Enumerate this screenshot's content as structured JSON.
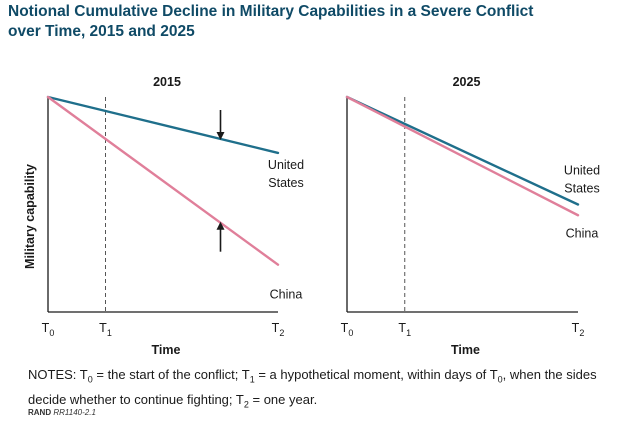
{
  "figure": {
    "title_line1": "Notional Cumulative Decline in Military Capabilities in a Severe Conflict",
    "title_line2": "over Time, 2015 and 2025",
    "notes_prefix": "NOTES: ",
    "notes_t0": "T",
    "notes_t0_sub": "0",
    "notes_t0_def": " = the start of the conflict; ",
    "notes_t1": "T",
    "notes_t1_sub": "1",
    "notes_t1_def": " = a hypothetical moment, within days of ",
    "notes_t0b": "T",
    "notes_t0b_sub": "0",
    "notes_t0b_def": ", when the sides decide whether to continue fighting; ",
    "notes_t2": "T",
    "notes_t2_sub": "2",
    "notes_t2_def": " = one year.",
    "source_org": "RAND ",
    "source_id": "RR1140-2.1"
  },
  "colors": {
    "united_states": "#1f6f8b",
    "china": "#e07f9a",
    "axis": "#1a1a1a",
    "title": "#0f4a66"
  },
  "chart_data": [
    {
      "type": "line",
      "title": "2015",
      "xlabel": "Time",
      "ylabel": "Military capability",
      "x_ticks": [
        {
          "main": "T",
          "sub": "0",
          "at": 0
        },
        {
          "main": "T",
          "sub": "1",
          "at": 0.25
        },
        {
          "main": "T",
          "sub": "2",
          "at": 1
        }
      ],
      "reference_line_x": 0.25,
      "xlim": [
        0,
        1
      ],
      "ylim": [
        0,
        1
      ],
      "series": [
        {
          "name": "United States",
          "name_lines": [
            "United",
            "States"
          ],
          "color": "#1f6f8b",
          "x": [
            0,
            1
          ],
          "y": [
            1.0,
            0.74
          ]
        },
        {
          "name": "China",
          "name_lines": [
            "China"
          ],
          "color": "#e07f9a",
          "x": [
            0,
            1
          ],
          "y": [
            1.0,
            0.22
          ]
        }
      ],
      "annotations": [
        {
          "type": "arrow-down",
          "x": 0.75,
          "y": 0.8
        },
        {
          "type": "arrow-up",
          "x": 0.75,
          "y": 0.42
        }
      ]
    },
    {
      "type": "line",
      "title": "2025",
      "xlabel": "Time",
      "ylabel": "",
      "x_ticks": [
        {
          "main": "T",
          "sub": "0",
          "at": 0
        },
        {
          "main": "T",
          "sub": "1",
          "at": 0.25
        },
        {
          "main": "T",
          "sub": "2",
          "at": 1
        }
      ],
      "reference_line_x": 0.25,
      "xlim": [
        0,
        1
      ],
      "ylim": [
        0,
        1
      ],
      "series": [
        {
          "name": "United States",
          "name_lines": [
            "United",
            "States"
          ],
          "color": "#1f6f8b",
          "x": [
            0,
            1
          ],
          "y": [
            1.0,
            0.5
          ]
        },
        {
          "name": "China",
          "name_lines": [
            "China"
          ],
          "color": "#e07f9a",
          "x": [
            0,
            1
          ],
          "y": [
            1.0,
            0.45
          ]
        }
      ],
      "annotations": []
    }
  ]
}
